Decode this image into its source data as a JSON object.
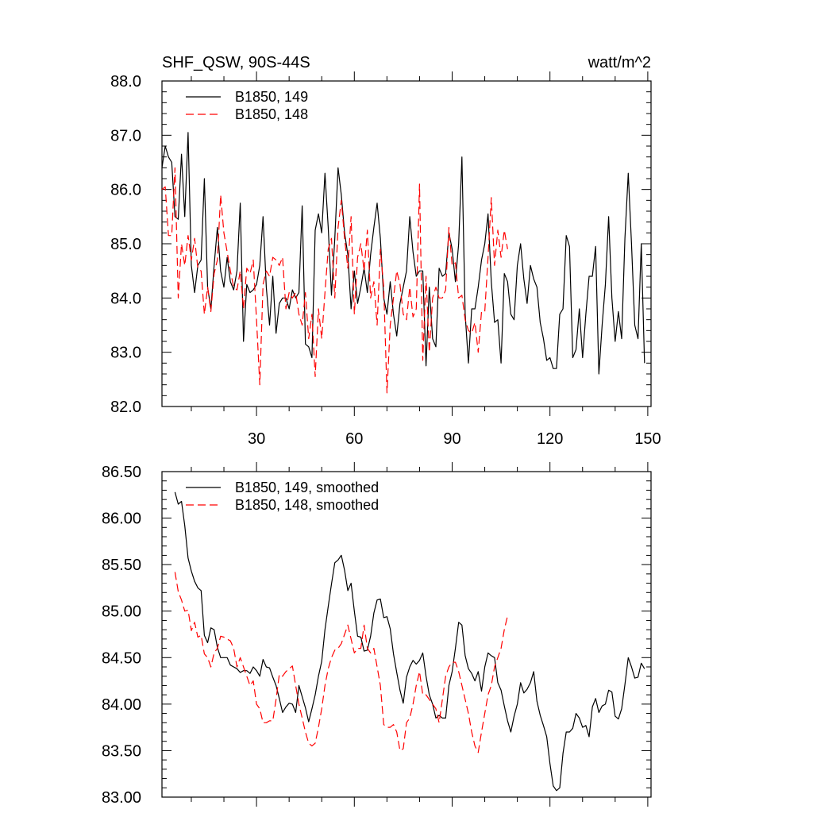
{
  "header": {
    "title": "SHF_QSW, 90S-44S",
    "units": "watt/m^2"
  },
  "chart_data": [
    {
      "type": "line",
      "xlim": [
        1,
        151
      ],
      "ylim": [
        82,
        88
      ],
      "x_ticks": [
        30,
        60,
        90,
        120,
        150
      ],
      "y_ticks": [
        "82.0",
        "83.0",
        "84.0",
        "85.0",
        "86.0",
        "87.0",
        "88.0"
      ],
      "legend_position": "top-left",
      "grid": false,
      "series": [
        {
          "name": "B1850, 149",
          "color": "#000000",
          "dash": "solid",
          "x_start": 1,
          "values": [
            86.4,
            86.8,
            86.6,
            86.5,
            85.5,
            85.45,
            86.65,
            85.5,
            87.05,
            84.6,
            84.1,
            84.6,
            84.7,
            86.2,
            84.2,
            83.8,
            84.6,
            85.3,
            84.5,
            84.2,
            84.75,
            84.3,
            84.15,
            84.5,
            85.75,
            83.2,
            84.25,
            84.1,
            84.15,
            84.25,
            84.6,
            85.5,
            84.2,
            83.5,
            84.4,
            83.35,
            83.9,
            84.0,
            84.0,
            83.8,
            84.15,
            84.0,
            84.1,
            85.7,
            83.15,
            83.1,
            82.9,
            85.25,
            85.55,
            85.2,
            86.3,
            85.3,
            84.05,
            85.1,
            86.4,
            85.9,
            85.2,
            84.8,
            83.8,
            84.5,
            83.9,
            84.2,
            84.55,
            84.1,
            84.8,
            85.3,
            85.75,
            85.1,
            84.0,
            83.7,
            84.3,
            83.7,
            83.3,
            83.9,
            84.2,
            84.5,
            85.5,
            84.85,
            84.4,
            84.5,
            84.5,
            82.75,
            84.2,
            83.25,
            83.1,
            84.55,
            84.4,
            84.45,
            85.2,
            84.9,
            84.3,
            85.0,
            86.6,
            83.7,
            82.8,
            83.8,
            83.8,
            84.2,
            84.7,
            85.0,
            85.55,
            84.3,
            83.55,
            83.6,
            82.8,
            84.45,
            84.3,
            83.7,
            83.6,
            84.6,
            85.0,
            84.35,
            83.9,
            84.6,
            84.35,
            84.2,
            83.55,
            83.25,
            82.85,
            82.9,
            82.7,
            82.7,
            83.7,
            83.8,
            85.15,
            84.95,
            82.9,
            83.05,
            83.8,
            82.9,
            83.7,
            84.4,
            84.4,
            84.95,
            82.6,
            83.5,
            84.25,
            85.5,
            84.0,
            83.2,
            83.75,
            83.25,
            85.1,
            86.3,
            85.0,
            83.5,
            83.25,
            85.0,
            82.8
          ]
        },
        {
          "name": "B1850, 148",
          "color": "#ff0000",
          "dash": "dashed",
          "x_start": 1,
          "values": [
            86.0,
            86.05,
            85.15,
            85.15,
            86.4,
            84.0,
            85.0,
            84.6,
            85.15,
            84.7,
            85.1,
            84.55,
            84.5,
            83.7,
            84.2,
            83.75,
            84.45,
            84.7,
            85.9,
            85.2,
            84.85,
            84.5,
            84.2,
            84.15,
            84.5,
            83.8,
            84.55,
            84.45,
            84.7,
            83.6,
            82.4,
            84.25,
            84.5,
            84.4,
            84.75,
            84.7,
            84.6,
            84.75,
            83.8,
            84.1,
            84.0,
            84.1,
            83.7,
            83.5,
            84.1,
            83.25,
            83.7,
            82.55,
            83.8,
            83.25,
            84.1,
            84.9,
            85.1,
            84.0,
            85.3,
            85.8,
            85.1,
            84.55,
            85.5,
            83.7,
            84.75,
            85.0,
            84.5,
            85.25,
            84.0,
            84.3,
            83.5,
            84.9,
            84.2,
            82.25,
            83.5,
            84.0,
            84.5,
            84.25,
            83.7,
            83.6,
            84.2,
            83.65,
            83.8,
            86.1,
            82.85,
            84.4,
            83.0,
            84.0,
            84.2,
            84.0,
            84.0,
            84.15,
            85.3,
            84.6,
            84.65,
            84.0,
            84.05,
            83.6,
            83.4,
            83.35,
            83.55,
            83.0,
            83.75,
            83.75,
            84.75,
            85.85,
            84.6,
            85.25,
            84.75,
            85.25,
            84.9
          ]
        }
      ]
    },
    {
      "type": "line",
      "xlim": [
        1,
        151
      ],
      "ylim": [
        83,
        86.5
      ],
      "x_ticks": [
        30,
        60,
        90,
        120,
        150
      ],
      "y_ticks": [
        "83.00",
        "83.50",
        "84.00",
        "84.50",
        "85.00",
        "85.50",
        "86.00",
        "86.50"
      ],
      "legend_position": "top-left",
      "grid": false,
      "series": [
        {
          "name": "B1850, 149, smoothed",
          "color": "#000000",
          "dash": "solid",
          "x_start": 5,
          "values": [
            86.28,
            86.15,
            86.18,
            85.92,
            85.57,
            85.43,
            85.32,
            85.25,
            85.22,
            84.74,
            84.66,
            84.82,
            84.8,
            84.61,
            84.5,
            84.5,
            84.5,
            84.42,
            84.4,
            84.38,
            84.34,
            84.36,
            84.36,
            84.33,
            84.4,
            84.36,
            84.3,
            84.48,
            84.4,
            84.39,
            84.29,
            84.2,
            84.06,
            83.91,
            83.97,
            84.01,
            84.0,
            83.91,
            84.2,
            84.08,
            83.96,
            83.81,
            83.95,
            84.1,
            84.3,
            84.46,
            84.8,
            85.05,
            85.29,
            85.52,
            85.55,
            85.6,
            85.44,
            85.22,
            85.3,
            85.0,
            84.73,
            84.72,
            84.57,
            84.58,
            84.73,
            84.98,
            85.12,
            85.13,
            84.93,
            84.94,
            84.81,
            84.54,
            84.34,
            84.15,
            84.01,
            84.29,
            84.4,
            84.47,
            84.43,
            84.47,
            84.55,
            84.3,
            84.1,
            84.0,
            83.85,
            83.88,
            83.85,
            83.85,
            84.2,
            84.35,
            84.6,
            84.88,
            84.85,
            84.52,
            84.38,
            84.33,
            84.25,
            84.35,
            84.14,
            84.4,
            84.55,
            84.52,
            84.5,
            84.23,
            84.15,
            83.98,
            83.82,
            83.7,
            83.87,
            84.0,
            84.23,
            84.12,
            84.16,
            84.23,
            84.35,
            84.03,
            83.88,
            83.77,
            83.65,
            83.36,
            83.12,
            83.07,
            83.1,
            83.47,
            83.7,
            83.7,
            83.74,
            83.9,
            83.85,
            83.75,
            83.77,
            83.65,
            83.97,
            84.06,
            83.91,
            83.98,
            84.0,
            84.15,
            84.13,
            83.87,
            83.84,
            83.95,
            84.21,
            84.5,
            84.4,
            84.28,
            84.29,
            84.44,
            84.38
          ]
        },
        {
          "name": "B1850, 148, smoothed",
          "color": "#ff0000",
          "dash": "dashed",
          "x_start": 5,
          "values": [
            85.42,
            85.21,
            85.12,
            85.0,
            85.01,
            84.79,
            84.88,
            84.72,
            84.74,
            84.54,
            84.5,
            84.4,
            84.55,
            84.6,
            84.73,
            84.72,
            84.7,
            84.68,
            84.6,
            84.4,
            84.5,
            84.4,
            84.3,
            84.2,
            84.25,
            84.0,
            83.95,
            83.8,
            83.8,
            83.82,
            83.82,
            84.05,
            84.32,
            84.3,
            84.35,
            84.38,
            84.41,
            84.2,
            84.0,
            83.85,
            83.7,
            83.58,
            83.55,
            83.58,
            83.75,
            83.95,
            84.2,
            84.38,
            84.5,
            84.58,
            84.6,
            84.65,
            84.75,
            84.85,
            84.7,
            84.55,
            84.6,
            84.6,
            84.85,
            84.6,
            84.55,
            84.6,
            84.4,
            84.2,
            83.78,
            83.75,
            83.75,
            83.78,
            83.7,
            83.5,
            83.52,
            83.8,
            83.85,
            84.0,
            84.2,
            84.35,
            84.1,
            84.1,
            84.05,
            84.0,
            83.95,
            83.8,
            84.05,
            84.3,
            84.4,
            84.45,
            84.45,
            84.35,
            84.2,
            84.05,
            83.9,
            83.7,
            83.55,
            83.48,
            83.7,
            83.9,
            84.1,
            84.2,
            84.4,
            84.5,
            84.6,
            84.8,
            84.95
          ]
        }
      ]
    }
  ]
}
